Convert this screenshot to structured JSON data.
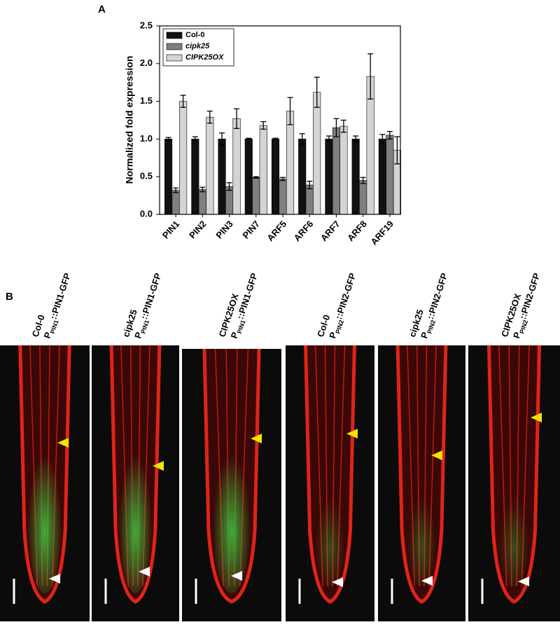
{
  "chart_data": {
    "type": "bar",
    "panel_label": "A",
    "y_label": "Normalized fold expression",
    "categories": [
      "PIN1",
      "PIN2",
      "PIN3",
      "PIN7",
      "ARF5",
      "ARF6",
      "ARF7",
      "ARF8",
      "ARF19"
    ],
    "series": [
      {
        "name": "Col-0",
        "color": "#111111",
        "italic": false,
        "values": [
          1.0,
          1.0,
          1.0,
          1.0,
          1.0,
          1.0,
          1.0,
          1.0,
          1.0
        ],
        "errors": [
          0.02,
          0.03,
          0.08,
          0.01,
          0.01,
          0.07,
          0.04,
          0.04,
          0.06
        ]
      },
      {
        "name": "cipk25",
        "color": "#7f7f7f",
        "italic": true,
        "values": [
          0.32,
          0.33,
          0.37,
          0.49,
          0.47,
          0.39,
          1.15,
          0.45,
          1.05
        ],
        "errors": [
          0.03,
          0.03,
          0.05,
          0.01,
          0.02,
          0.05,
          0.12,
          0.04,
          0.05
        ]
      },
      {
        "name": "CIPK25OX",
        "color": "#d4d4d4",
        "italic": true,
        "values": [
          1.5,
          1.29,
          1.27,
          1.18,
          1.37,
          1.62,
          1.17,
          1.83,
          0.85
        ],
        "errors": [
          0.08,
          0.08,
          0.13,
          0.05,
          0.18,
          0.2,
          0.08,
          0.3,
          0.18
        ]
      }
    ],
    "ylim": [
      0,
      2.5
    ],
    "yticks": [
      {
        "value": 0,
        "label": "0.0"
      },
      0.5,
      {
        "value": 1,
        "label": "1.0"
      },
      1.5,
      {
        "value": 2,
        "label": "2.0"
      },
      2.5
    ],
    "legend": "upper-left",
    "grid": false
  },
  "panel_b": {
    "label": "B",
    "images": [
      {
        "genotype": "Col-0",
        "promoter": "P",
        "subscript": "PIN1",
        "construct": "::PIN1-GFP"
      },
      {
        "genotype": "cipk25",
        "promoter": "P",
        "subscript": "PIN1",
        "construct": "::PIN1-GFP"
      },
      {
        "genotype": "CIPK25OX",
        "promoter": "P",
        "subscript": "PIN1",
        "construct": "::PIN1-GFP"
      },
      {
        "genotype": "Col-0",
        "promoter": "P",
        "subscript": "PIN2",
        "construct": "::PIN2-GFP"
      },
      {
        "genotype": "cipk25",
        "promoter": "P",
        "subscript": "PIN2",
        "construct": "::PIN2-GFP"
      },
      {
        "genotype": "CIPK25OX",
        "promoter": "P",
        "subscript": "PIN2",
        "construct": "::PIN2-GFP"
      }
    ]
  }
}
